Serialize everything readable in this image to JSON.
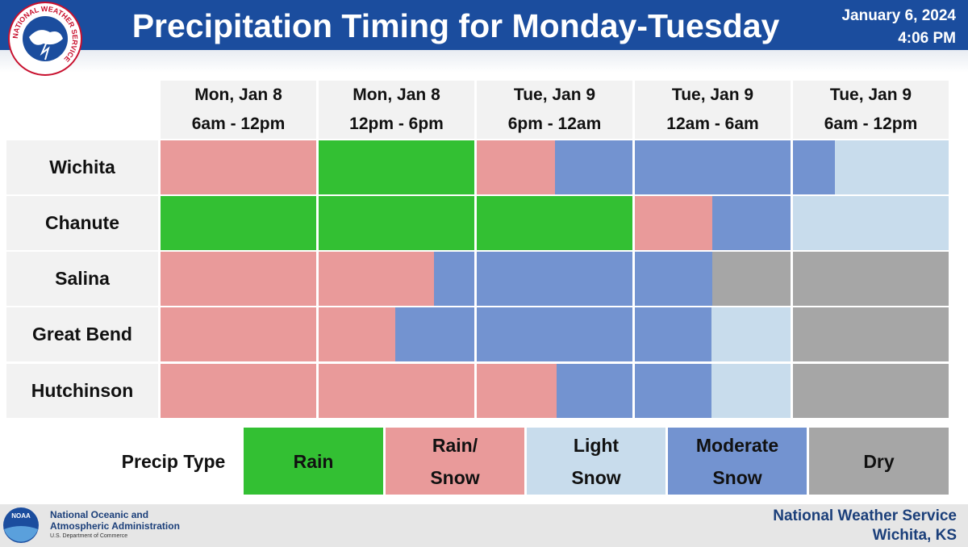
{
  "header": {
    "title": "Precipitation Timing for Monday-Tuesday",
    "date": "January 6, 2024",
    "time": "4:06 PM",
    "logo_text": "NATIONAL WEATHER SERVICE"
  },
  "table": {
    "columns": [
      [
        "Mon, Jan 8",
        "6am - 12pm"
      ],
      [
        "Mon, Jan 8",
        "12pm - 6pm"
      ],
      [
        "Tue, Jan 9",
        "6pm - 12am"
      ],
      [
        "Tue, Jan 9",
        "12am - 6am"
      ],
      [
        "Tue, Jan 9",
        "6am - 12pm"
      ]
    ],
    "rows": [
      "Wichita",
      "Chanute",
      "Salina",
      "Great Bend",
      "Hutchinson"
    ]
  },
  "legend": {
    "title": "Precip Type",
    "items": [
      [
        "Rain"
      ],
      [
        "Rain/",
        "Snow"
      ],
      [
        "Light",
        "Snow"
      ],
      [
        "Moderate",
        "Snow"
      ],
      [
        "Dry"
      ]
    ]
  },
  "footer": {
    "noaa_logo": "NOAA",
    "agency": [
      "National Oceanic and",
      "Atmospheric Administration"
    ],
    "department": "U.S. Department of Commerce",
    "office": [
      "National Weather Service",
      "Wichita, KS"
    ]
  }
}
